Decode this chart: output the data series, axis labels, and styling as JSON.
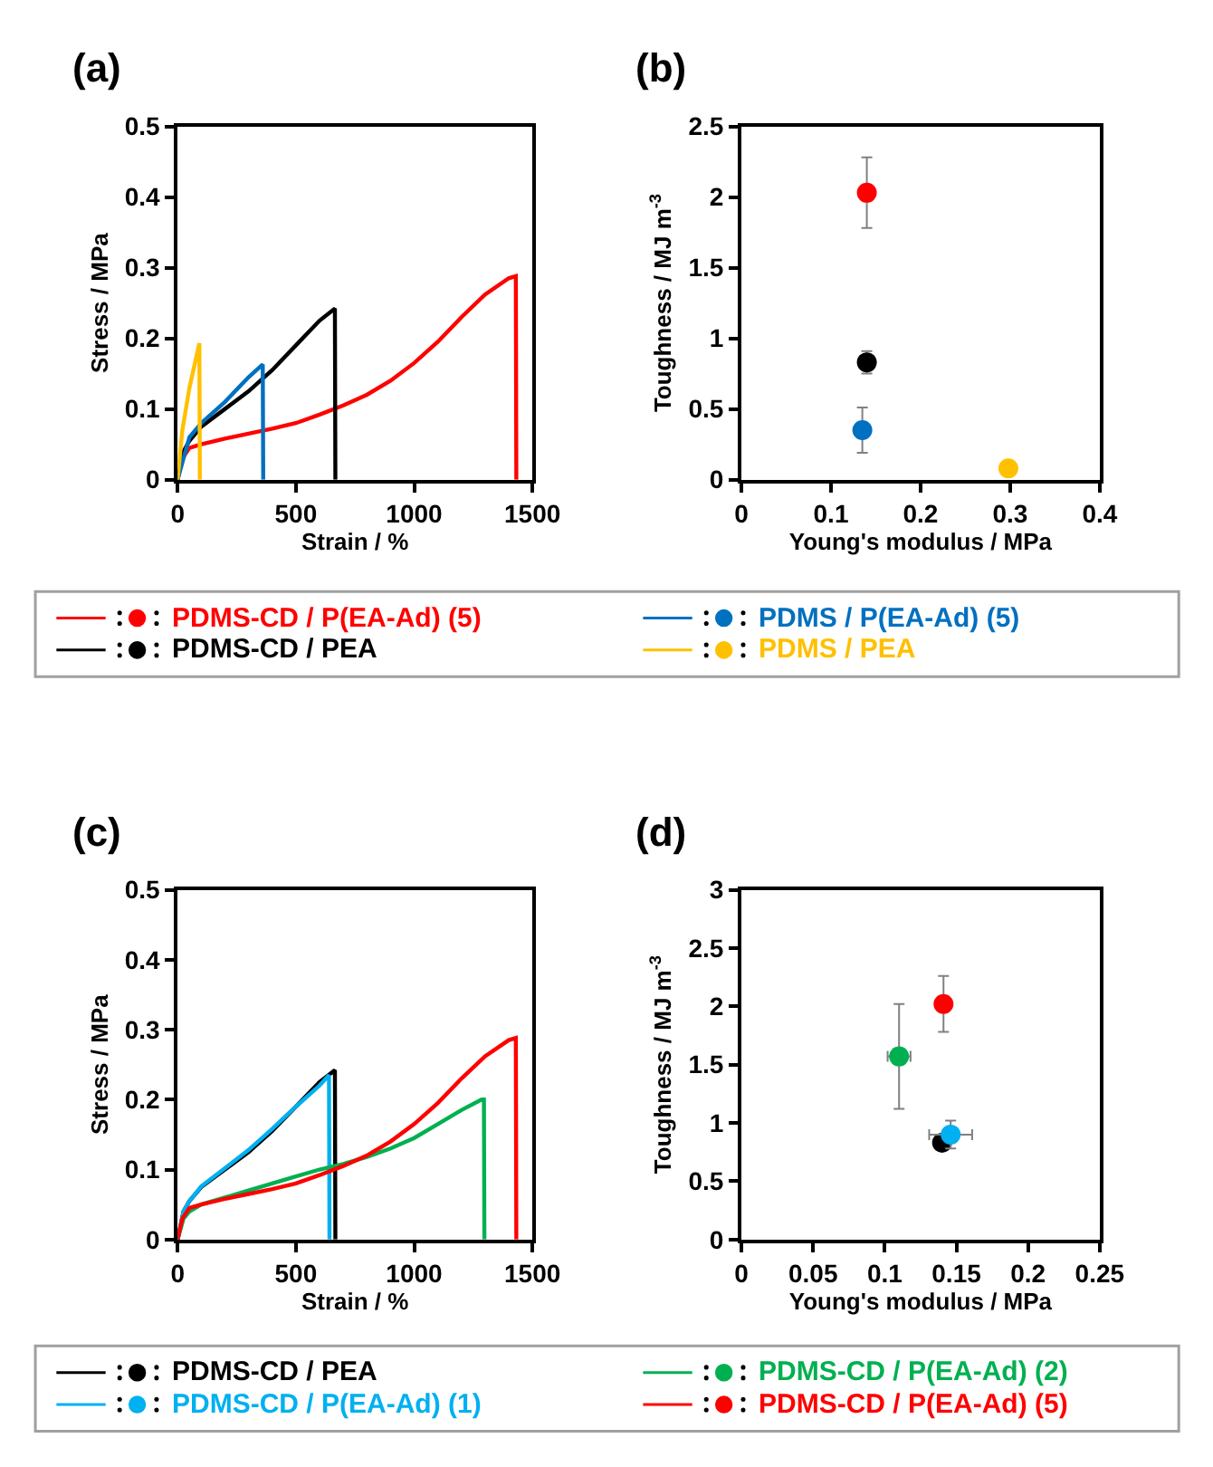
{
  "chart_data": [
    {
      "type": "line",
      "title": "(a)",
      "xlabel": "Strain / %",
      "ylabel": "Stress / MPa",
      "xlim": [
        0,
        1500
      ],
      "xticks": [
        0,
        500,
        1000,
        1500
      ],
      "ylim": [
        0,
        0.5
      ],
      "yticks": [
        0,
        0.1,
        0.2,
        0.3,
        0.4,
        0.5
      ],
      "legend": "bottom",
      "series": [
        {
          "name": "PDMS-CD / P(EA-Ad) (5)",
          "color": "#ff0000",
          "x": [
            0,
            20,
            50,
            100,
            200,
            300,
            400,
            500,
            600,
            700,
            800,
            900,
            1000,
            1100,
            1200,
            1300,
            1400,
            1430,
            1432
          ],
          "values": [
            0,
            0.03,
            0.045,
            0.05,
            0.058,
            0.065,
            0.072,
            0.08,
            0.092,
            0.105,
            0.12,
            0.14,
            0.165,
            0.195,
            0.23,
            0.262,
            0.285,
            0.288,
            0
          ]
        },
        {
          "name": "PDMS-CD / PEA",
          "color": "#000000",
          "x": [
            0,
            25,
            50,
            100,
            200,
            300,
            400,
            500,
            600,
            665,
            667
          ],
          "values": [
            0,
            0.04,
            0.055,
            0.075,
            0.1,
            0.125,
            0.155,
            0.19,
            0.225,
            0.242,
            0
          ]
        },
        {
          "name": "PDMS / P(EA-Ad) (5)",
          "color": "#0070c0",
          "x": [
            0,
            50,
            100,
            200,
            300,
            360,
            362
          ],
          "values": [
            0,
            0.06,
            0.08,
            0.11,
            0.145,
            0.163,
            0
          ]
        },
        {
          "name": "PDMS / PEA",
          "color": "#ffc000",
          "x": [
            0,
            20,
            50,
            92,
            94
          ],
          "values": [
            0,
            0.07,
            0.13,
            0.193,
            0
          ]
        }
      ]
    },
    {
      "type": "scatter",
      "title": "(b)",
      "xlabel": "Young's modulus / MPa",
      "ylabel": "Toughness / MJ m$^{-3}$",
      "xlim": [
        0,
        0.4
      ],
      "xticks": [
        0,
        0.1,
        0.2,
        0.3,
        0.4
      ],
      "ylim": [
        0,
        2.5
      ],
      "yticks": [
        0,
        0.5,
        1,
        1.5,
        2,
        2.5
      ],
      "marker": "circle",
      "series": [
        {
          "color": "#ff0000",
          "x": [
            0.14
          ],
          "values": [
            2.03
          ],
          "errors": [
            0.25
          ]
        },
        {
          "color": "#000000",
          "x": [
            0.14
          ],
          "values": [
            0.83
          ],
          "errors": [
            0.08
          ]
        },
        {
          "color": "#0070c0",
          "x": [
            0.135
          ],
          "values": [
            0.35
          ],
          "errors": [
            0.16
          ]
        },
        {
          "color": "#ffc000",
          "x": [
            0.298
          ],
          "values": [
            0.08
          ]
        }
      ]
    },
    {
      "type": "line",
      "title": "(c)",
      "xlabel": "Strain / %",
      "ylabel": "Stress / MPa",
      "xlim": [
        0,
        1500
      ],
      "xticks": [
        0,
        500,
        1000,
        1500
      ],
      "ylim": [
        0,
        0.5
      ],
      "yticks": [
        0,
        0.1,
        0.2,
        0.3,
        0.4,
        0.5
      ],
      "legend": "bottom",
      "series": [
        {
          "name": "PDMS-CD / PEA",
          "color": "#000000",
          "x": [
            0,
            25,
            50,
            100,
            200,
            300,
            400,
            500,
            600,
            665,
            667
          ],
          "values": [
            0,
            0.04,
            0.055,
            0.075,
            0.1,
            0.125,
            0.155,
            0.19,
            0.225,
            0.242,
            0
          ]
        },
        {
          "name": "PDMS-CD / P(EA-Ad) (1)",
          "color": "#00b0f0",
          "x": [
            0,
            25,
            50,
            100,
            200,
            300,
            400,
            500,
            600,
            640,
            642
          ],
          "values": [
            0,
            0.04,
            0.055,
            0.076,
            0.102,
            0.128,
            0.158,
            0.19,
            0.22,
            0.235,
            0
          ]
        },
        {
          "name": "PDMS-CD / P(EA-Ad) (2)",
          "color": "#00b050",
          "x": [
            0,
            25,
            50,
            100,
            200,
            300,
            400,
            500,
            600,
            700,
            800,
            900,
            1000,
            1100,
            1200,
            1285,
            1295,
            1297
          ],
          "values": [
            0,
            0.03,
            0.04,
            0.05,
            0.06,
            0.07,
            0.08,
            0.09,
            0.1,
            0.108,
            0.118,
            0.13,
            0.145,
            0.165,
            0.185,
            0.2,
            0.2,
            0
          ]
        },
        {
          "name": "PDMS-CD / P(EA-Ad) (5)",
          "color": "#ff0000",
          "x": [
            0,
            20,
            50,
            100,
            200,
            300,
            400,
            500,
            600,
            700,
            800,
            900,
            1000,
            1100,
            1200,
            1300,
            1400,
            1430,
            1432
          ],
          "values": [
            0,
            0.03,
            0.045,
            0.05,
            0.058,
            0.065,
            0.072,
            0.08,
            0.092,
            0.105,
            0.12,
            0.14,
            0.165,
            0.195,
            0.23,
            0.262,
            0.285,
            0.288,
            0
          ]
        }
      ]
    },
    {
      "type": "scatter",
      "title": "(d)",
      "xlabel": "Young's modulus / MPa",
      "ylabel": "Toughness / MJ m$^{-3}$",
      "xlim": [
        0,
        0.25
      ],
      "xticks": [
        0,
        0.05,
        0.1,
        0.15,
        0.2,
        0.25
      ],
      "ylim": [
        0,
        3
      ],
      "yticks": [
        0,
        0.5,
        1,
        1.5,
        2,
        2.5,
        3
      ],
      "marker": "circle",
      "series": [
        {
          "color": "#000000",
          "x": [
            0.14
          ],
          "values": [
            0.83
          ]
        },
        {
          "color": "#00b0f0",
          "x": [
            0.146
          ],
          "values": [
            0.9
          ],
          "errors": [
            0.12
          ],
          "xerrors": [
            0.015
          ]
        },
        {
          "color": "#00b050",
          "x": [
            0.11
          ],
          "values": [
            1.57
          ],
          "errors": [
            0.45
          ],
          "xerrors": [
            0.008
          ]
        },
        {
          "color": "#ff0000",
          "x": [
            0.141
          ],
          "values": [
            2.02
          ],
          "errors": [
            0.24
          ]
        }
      ]
    }
  ]
}
